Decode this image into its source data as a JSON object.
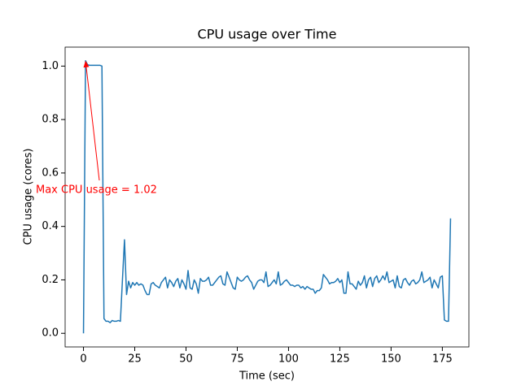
{
  "chart_data": {
    "type": "line",
    "title": "CPU usage over Time",
    "x_label": "Time (sec)",
    "y_label": "CPU usage (cores)",
    "color": "#1f77b4",
    "annotation": {
      "text": "Max CPU usage = 1.02",
      "x": 1,
      "y": 1.02,
      "color": "#ff0000"
    },
    "x": [
      0,
      1,
      2,
      3,
      4,
      5,
      6,
      7,
      8,
      9,
      10,
      11,
      12,
      13,
      14,
      15,
      16,
      17,
      18,
      19,
      20,
      21,
      22,
      23,
      24,
      25,
      26,
      27,
      28,
      29,
      30,
      31,
      32,
      33,
      34,
      35,
      36,
      37,
      38,
      39,
      40,
      41,
      42,
      43,
      44,
      45,
      46,
      47,
      48,
      49,
      50,
      51,
      52,
      53,
      54,
      55,
      56,
      57,
      58,
      59,
      60,
      61,
      62,
      63,
      64,
      65,
      66,
      67,
      68,
      69,
      70,
      71,
      72,
      73,
      74,
      75,
      76,
      77,
      78,
      79,
      80,
      81,
      82,
      83,
      84,
      85,
      86,
      87,
      88,
      89,
      90,
      91,
      92,
      93,
      94,
      95,
      96,
      97,
      98,
      99,
      100,
      101,
      102,
      103,
      104,
      105,
      106,
      107,
      108,
      109,
      110,
      111,
      112,
      113,
      114,
      115,
      116,
      117,
      118,
      119,
      120,
      121,
      122,
      123,
      124,
      125,
      126,
      127,
      128,
      129,
      130,
      131,
      132,
      133,
      134,
      135,
      136,
      137,
      138,
      139,
      140,
      141,
      142,
      143,
      144,
      145,
      146,
      147,
      148,
      149,
      150,
      151,
      152,
      153,
      154,
      155,
      156,
      157,
      158,
      159,
      160,
      161,
      162,
      163,
      164,
      165,
      166,
      167,
      168,
      169,
      170,
      171,
      172,
      173,
      174,
      175,
      176,
      177,
      178,
      179
    ],
    "values": [
      0,
      1.02,
      1.005,
      1.003,
      1.003,
      1.003,
      1.003,
      1.003,
      1.003,
      1.0,
      0.055,
      0.045,
      0.045,
      0.04,
      0.048,
      0.045,
      0.045,
      0.048,
      0.045,
      0.2,
      0.35,
      0.145,
      0.195,
      0.17,
      0.19,
      0.18,
      0.19,
      0.18,
      0.185,
      0.18,
      0.16,
      0.145,
      0.145,
      0.185,
      0.19,
      0.18,
      0.175,
      0.17,
      0.19,
      0.2,
      0.21,
      0.17,
      0.2,
      0.19,
      0.175,
      0.195,
      0.205,
      0.17,
      0.2,
      0.185,
      0.165,
      0.235,
      0.17,
      0.165,
      0.2,
      0.185,
      0.15,
      0.205,
      0.195,
      0.195,
      0.2,
      0.21,
      0.18,
      0.18,
      0.19,
      0.2,
      0.21,
      0.215,
      0.185,
      0.18,
      0.23,
      0.21,
      0.19,
      0.17,
      0.165,
      0.21,
      0.2,
      0.195,
      0.2,
      0.21,
      0.215,
      0.2,
      0.19,
      0.165,
      0.18,
      0.195,
      0.2,
      0.2,
      0.19,
      0.23,
      0.175,
      0.18,
      0.19,
      0.2,
      0.185,
      0.23,
      0.18,
      0.185,
      0.195,
      0.2,
      0.19,
      0.18,
      0.18,
      0.175,
      0.18,
      0.18,
      0.17,
      0.175,
      0.165,
      0.175,
      0.17,
      0.165,
      0.165,
      0.15,
      0.16,
      0.16,
      0.17,
      0.22,
      0.21,
      0.2,
      0.185,
      0.19,
      0.19,
      0.195,
      0.205,
      0.19,
      0.2,
      0.15,
      0.15,
      0.23,
      0.185,
      0.185,
      0.175,
      0.165,
      0.195,
      0.18,
      0.19,
      0.215,
      0.17,
      0.2,
      0.21,
      0.175,
      0.205,
      0.215,
      0.19,
      0.2,
      0.215,
      0.2,
      0.23,
      0.19,
      0.195,
      0.2,
      0.17,
      0.215,
      0.175,
      0.17,
      0.2,
      0.205,
      0.19,
      0.18,
      0.195,
      0.2,
      0.185,
      0.19,
      0.2,
      0.23,
      0.19,
      0.195,
      0.2,
      0.21,
      0.17,
      0.2,
      0.185,
      0.17,
      0.21,
      0.215,
      0.05,
      0.045,
      0.045,
      0.43
    ],
    "xlim": [
      -8.95,
      187.95
    ],
    "xticks": [
      0,
      25,
      50,
      75,
      100,
      125,
      150,
      175
    ],
    "ylim": [
      -0.051,
      1.071
    ],
    "yticks": [
      {
        "value": 0,
        "label": "0.0"
      },
      0.2,
      0.4,
      0.6,
      0.8,
      {
        "value": 1,
        "label": "1.0"
      }
    ]
  }
}
